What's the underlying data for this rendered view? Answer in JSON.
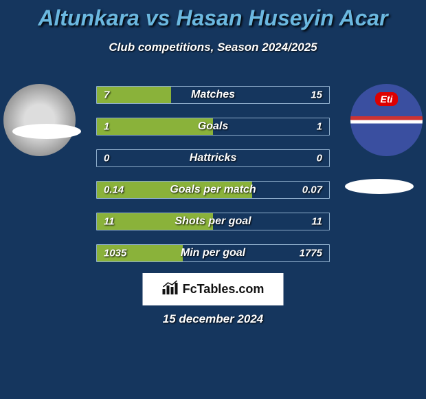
{
  "title": "Altunkara vs Hasan Huseyin Acar",
  "subtitle": "Club competitions, Season 2024/2025",
  "date": "15 december 2024",
  "branding": "FcTables.com",
  "colors": {
    "background": "#15365e",
    "title": "#6bb8e0",
    "text": "#ffffff",
    "bar_fill": "#8ab23a",
    "bar_border": "#8faecc",
    "branding_bg": "#ffffff",
    "branding_text": "#111111"
  },
  "rows": [
    {
      "label": "Matches",
      "left": "7",
      "right": "15",
      "fill_left_pct": 32,
      "fill_right_pct": 0
    },
    {
      "label": "Goals",
      "left": "1",
      "right": "1",
      "fill_left_pct": 50,
      "fill_right_pct": 0
    },
    {
      "label": "Hattricks",
      "left": "0",
      "right": "0",
      "fill_left_pct": 0,
      "fill_right_pct": 0
    },
    {
      "label": "Goals per match",
      "left": "0.14",
      "right": "0.07",
      "fill_left_pct": 67,
      "fill_right_pct": 0
    },
    {
      "label": "Shots per goal",
      "left": "11",
      "right": "11",
      "fill_left_pct": 50,
      "fill_right_pct": 0
    },
    {
      "label": "Min per goal",
      "left": "1035",
      "right": "1775",
      "fill_left_pct": 37,
      "fill_right_pct": 0
    }
  ]
}
